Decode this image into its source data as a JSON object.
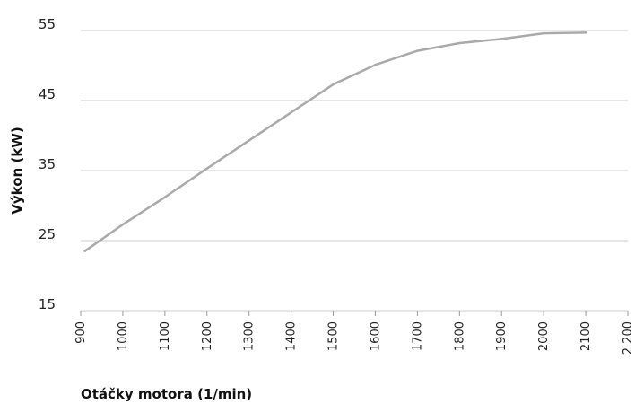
{
  "chart_data": {
    "type": "line",
    "xlabel": "Otáčky motora (1/min)",
    "ylabel": "Výkon (kW)",
    "x_ticks": [
      "900",
      "1000",
      "1100",
      "1200",
      "1300",
      "1400",
      "1500",
      "1600",
      "1700",
      "1800",
      "1900",
      "2000",
      "2100",
      "2 200"
    ],
    "y_ticks": [
      "15",
      "25",
      "35",
      "45",
      "55"
    ],
    "xlim": [
      900,
      2200
    ],
    "ylim": [
      15,
      55
    ],
    "grid": "horizontal",
    "colors": {
      "line": "#aaaaaa",
      "grid": "#cccccc"
    },
    "series": [
      {
        "x": [
          910,
          1000,
          1100,
          1200,
          1300,
          1410,
          1500,
          1600,
          1700,
          1800,
          1900,
          2000,
          2100
        ],
        "y": [
          23.5,
          27.3,
          31.2,
          35.3,
          39.3,
          43.7,
          47.3,
          50.1,
          52.1,
          53.2,
          53.8,
          54.6,
          54.7
        ]
      }
    ]
  }
}
